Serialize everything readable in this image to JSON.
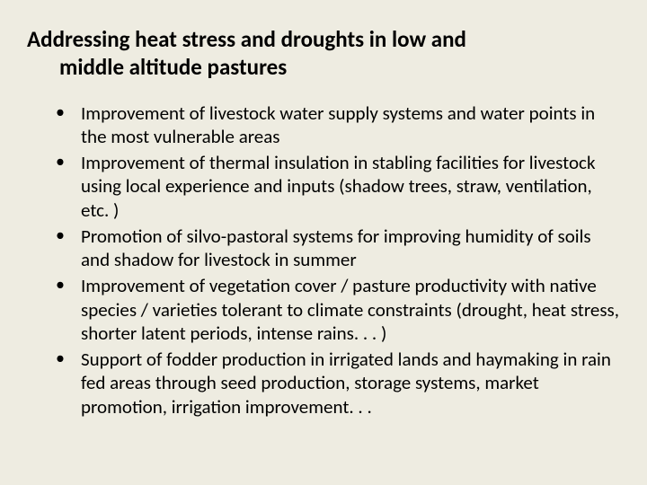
{
  "slide": {
    "background_color": "#eeece1",
    "text_color": "#000000",
    "title_fontsize": 25,
    "title_fontweight": 700,
    "body_fontsize": 21,
    "body_fontweight": 400,
    "line_height": 1.25,
    "font_family": "Calibri, 'Segoe UI', Arial, sans-serif",
    "title_line1": "Addressing heat stress and droughts in low and",
    "title_line2": "middle altitude pastures",
    "bullets": [
      "Improvement of livestock water supply systems and water points in the most vulnerable areas",
      "Improvement of  thermal insulation in stabling facilities for livestock using local experience and inputs (shadow trees, straw, ventilation, etc. )",
      "Promotion of silvo-pastoral systems for improving humidity of soils and shadow for livestock in summer",
      "Improvement of vegetation cover / pasture productivity with native species / varieties tolerant to climate constraints (drought, heat stress, shorter latent periods, intense rains. . . )",
      "Support of fodder production in irrigated lands and haymaking in rain fed areas through seed production, storage systems, market promotion, irrigation improvement. . ."
    ]
  }
}
